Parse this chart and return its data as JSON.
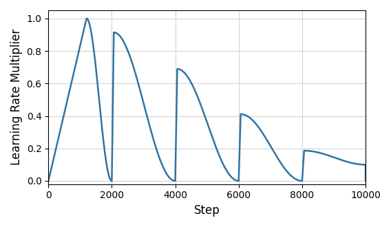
{
  "total_steps": 10000,
  "cycle_boundaries": [
    0,
    2000,
    4000,
    6000,
    8000,
    10000
  ],
  "warmup_steps": [
    1200,
    60,
    60,
    60,
    60
  ],
  "cycle_min_lr": 0.0,
  "final_min_lr": 0.1,
  "outer_min_lr": 0.1,
  "line_color": "#3274a1",
  "line_width": 1.8,
  "xlabel": "Step",
  "ylabel": "Learning Rate Multiplier",
  "xlim": [
    0,
    10000
  ],
  "ylim": [
    -0.02,
    1.05
  ],
  "xticks": [
    0,
    2000,
    4000,
    6000,
    8000,
    10000
  ],
  "yticks": [
    0.0,
    0.2,
    0.4,
    0.6,
    0.8,
    1.0
  ],
  "grid": true,
  "background_color": "#ffffff"
}
